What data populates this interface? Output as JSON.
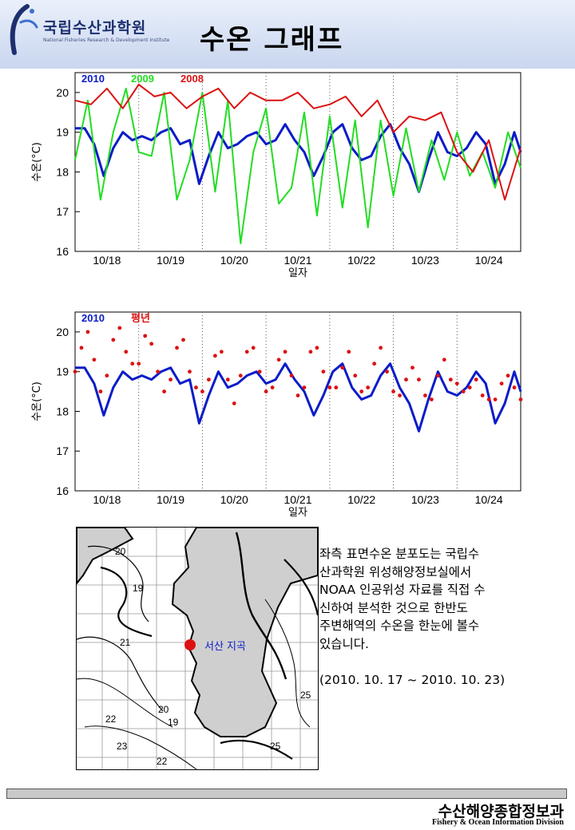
{
  "header": {
    "org_name": "국립수산과학원",
    "org_subtitle": "National Fisheries Research & Development Institute",
    "title": "수온 그래프"
  },
  "chart_data": [
    {
      "type": "line",
      "title": "",
      "xlabel": "일자",
      "ylabel": "수온(°C)",
      "ylim": [
        16,
        20.5
      ],
      "yticks": [
        16,
        17,
        18,
        19,
        20
      ],
      "xlim": [
        0,
        7
      ],
      "categories": [
        "10/18",
        "10/19",
        "10/20",
        "10/21",
        "10/22",
        "10/23",
        "10/24"
      ],
      "grid": "dotted vertical day separators",
      "legend_position": "top-left",
      "series": [
        {
          "name": "2010",
          "color": "#0a1cc8",
          "x": [
            0,
            0.15,
            0.3,
            0.45,
            0.6,
            0.75,
            0.9,
            1.05,
            1.2,
            1.35,
            1.5,
            1.65,
            1.8,
            1.95,
            2.1,
            2.25,
            2.4,
            2.55,
            2.7,
            2.85,
            3.0,
            3.15,
            3.3,
            3.45,
            3.6,
            3.75,
            3.9,
            4.05,
            4.2,
            4.35,
            4.5,
            4.65,
            4.8,
            4.95,
            5.1,
            5.25,
            5.4,
            5.55,
            5.7,
            5.85,
            6.0,
            6.15,
            6.3,
            6.45,
            6.6,
            6.75,
            6.9,
            7.0
          ],
          "values": [
            19.1,
            19.1,
            18.7,
            17.9,
            18.6,
            19.0,
            18.8,
            18.9,
            18.8,
            19.0,
            19.1,
            18.7,
            18.8,
            17.7,
            18.4,
            19.0,
            18.6,
            18.7,
            18.9,
            19.0,
            18.7,
            18.8,
            19.2,
            18.8,
            18.5,
            17.9,
            18.4,
            19.0,
            19.2,
            18.6,
            18.3,
            18.4,
            18.9,
            19.2,
            18.6,
            18.2,
            17.5,
            18.3,
            19.0,
            18.5,
            18.4,
            18.6,
            19.0,
            18.7,
            17.7,
            18.2,
            19.0,
            18.5
          ]
        },
        {
          "name": "2009",
          "color": "#22dd22",
          "x": [
            0,
            0.2,
            0.4,
            0.6,
            0.8,
            1.0,
            1.2,
            1.4,
            1.6,
            1.8,
            2.0,
            2.2,
            2.4,
            2.6,
            2.8,
            3.0,
            3.2,
            3.4,
            3.6,
            3.8,
            4.0,
            4.2,
            4.4,
            4.6,
            4.8,
            5.0,
            5.2,
            5.4,
            5.6,
            5.8,
            6.0,
            6.2,
            6.4,
            6.6,
            6.8,
            7.0
          ],
          "values": [
            18.3,
            19.8,
            17.3,
            19.0,
            20.1,
            18.5,
            18.4,
            20.0,
            17.3,
            18.3,
            20.0,
            17.5,
            19.8,
            16.2,
            18.5,
            19.6,
            17.2,
            17.6,
            19.5,
            16.9,
            19.4,
            17.1,
            19.3,
            16.6,
            19.3,
            17.4,
            19.1,
            17.5,
            18.8,
            17.8,
            19.0,
            17.9,
            18.5,
            17.6,
            19.0,
            18.1
          ]
        },
        {
          "name": "2008",
          "color": "#dd1111",
          "x": [
            0,
            0.25,
            0.5,
            0.75,
            1.0,
            1.25,
            1.5,
            1.75,
            2.0,
            2.25,
            2.5,
            2.75,
            3.0,
            3.25,
            3.5,
            3.75,
            4.0,
            4.25,
            4.5,
            4.75,
            5.0,
            5.25,
            5.5,
            5.75,
            6.0,
            6.25,
            6.5,
            6.75,
            7.0
          ],
          "values": [
            19.8,
            19.7,
            20.1,
            19.6,
            20.2,
            19.9,
            20.0,
            19.6,
            19.9,
            20.1,
            19.6,
            20.0,
            19.8,
            19.8,
            20.0,
            19.6,
            19.7,
            19.9,
            19.4,
            19.8,
            19.0,
            19.4,
            19.3,
            19.5,
            18.5,
            18.0,
            18.8,
            17.3,
            18.6
          ]
        }
      ]
    },
    {
      "type": "line",
      "title": "",
      "xlabel": "일자",
      "ylabel": "수온(°C)",
      "ylim": [
        16,
        20.5
      ],
      "yticks": [
        16,
        17,
        18,
        19,
        20
      ],
      "xlim": [
        0,
        7
      ],
      "categories": [
        "10/18",
        "10/19",
        "10/20",
        "10/21",
        "10/22",
        "10/23",
        "10/24"
      ],
      "grid": "dotted vertical day separators",
      "legend_position": "top-left",
      "series": [
        {
          "name": "2010",
          "color": "#0a1cc8",
          "style": "line",
          "x": [
            0,
            0.15,
            0.3,
            0.45,
            0.6,
            0.75,
            0.9,
            1.05,
            1.2,
            1.35,
            1.5,
            1.65,
            1.8,
            1.95,
            2.1,
            2.25,
            2.4,
            2.55,
            2.7,
            2.85,
            3.0,
            3.15,
            3.3,
            3.45,
            3.6,
            3.75,
            3.9,
            4.05,
            4.2,
            4.35,
            4.5,
            4.65,
            4.8,
            4.95,
            5.1,
            5.25,
            5.4,
            5.55,
            5.7,
            5.85,
            6.0,
            6.15,
            6.3,
            6.45,
            6.6,
            6.75,
            6.9,
            7.0
          ],
          "values": [
            19.1,
            19.1,
            18.7,
            17.9,
            18.6,
            19.0,
            18.8,
            18.9,
            18.8,
            19.0,
            19.1,
            18.7,
            18.8,
            17.7,
            18.4,
            19.0,
            18.6,
            18.7,
            18.9,
            19.0,
            18.7,
            18.8,
            19.2,
            18.8,
            18.5,
            17.9,
            18.4,
            19.0,
            19.2,
            18.6,
            18.3,
            18.4,
            18.9,
            19.2,
            18.6,
            18.2,
            17.5,
            18.3,
            19.0,
            18.5,
            18.4,
            18.6,
            19.0,
            18.7,
            17.7,
            18.2,
            19.0,
            18.5
          ]
        },
        {
          "name": "평년",
          "color": "#dd1111",
          "style": "dots",
          "x": [
            0,
            0.1,
            0.2,
            0.3,
            0.4,
            0.5,
            0.6,
            0.7,
            0.8,
            0.9,
            1.0,
            1.1,
            1.2,
            1.3,
            1.4,
            1.5,
            1.6,
            1.7,
            1.8,
            1.9,
            2.0,
            2.1,
            2.2,
            2.3,
            2.4,
            2.5,
            2.6,
            2.7,
            2.8,
            2.9,
            3.0,
            3.1,
            3.2,
            3.3,
            3.4,
            3.5,
            3.6,
            3.7,
            3.8,
            3.9,
            4.0,
            4.1,
            4.2,
            4.3,
            4.4,
            4.5,
            4.6,
            4.7,
            4.8,
            4.9,
            5.0,
            5.1,
            5.2,
            5.3,
            5.4,
            5.5,
            5.6,
            5.7,
            5.8,
            5.9,
            6.0,
            6.1,
            6.2,
            6.3,
            6.4,
            6.5,
            6.6,
            6.7,
            6.8,
            6.9,
            7.0
          ],
          "values": [
            19.0,
            19.6,
            20.0,
            19.3,
            18.5,
            18.9,
            19.8,
            20.1,
            19.5,
            19.2,
            19.2,
            19.9,
            19.7,
            19.0,
            18.5,
            18.8,
            19.6,
            19.8,
            19.0,
            18.6,
            18.5,
            18.8,
            19.4,
            19.5,
            18.8,
            18.2,
            18.9,
            19.5,
            19.6,
            19.0,
            18.5,
            18.6,
            19.3,
            19.5,
            18.9,
            18.4,
            18.6,
            19.5,
            19.6,
            19.0,
            18.6,
            18.6,
            19.1,
            19.5,
            18.9,
            18.5,
            18.6,
            19.2,
            19.6,
            19.0,
            18.5,
            18.4,
            18.8,
            19.1,
            18.8,
            18.4,
            18.3,
            18.9,
            19.3,
            18.8,
            18.7,
            18.5,
            18.6,
            18.8,
            18.4,
            18.3,
            18.3,
            18.7,
            18.9,
            18.6,
            18.3
          ]
        }
      ]
    }
  ],
  "map": {
    "marker_label": "서산 지곡",
    "marker_color": "#dd1111",
    "contour_labels": [
      "20",
      "19",
      "21",
      "22",
      "23",
      "22",
      "20",
      "19",
      "25",
      "25"
    ]
  },
  "description": {
    "lines": [
      "좌측 표면수온 분포도는 국립수",
      "산과학원 위성해양정보실에서",
      "NOAA 인공위성 자료를 직접 수",
      "신하여 분석한 것으로  한반도",
      "주변해역의 수온을 한눈에 볼수",
      "있습니다."
    ],
    "period": "(2010. 10. 17 ~ 2010. 10. 23)"
  },
  "footer": {
    "title": "수산해양종합정보과",
    "subtitle": "Fishery & Ocean Information Division"
  }
}
